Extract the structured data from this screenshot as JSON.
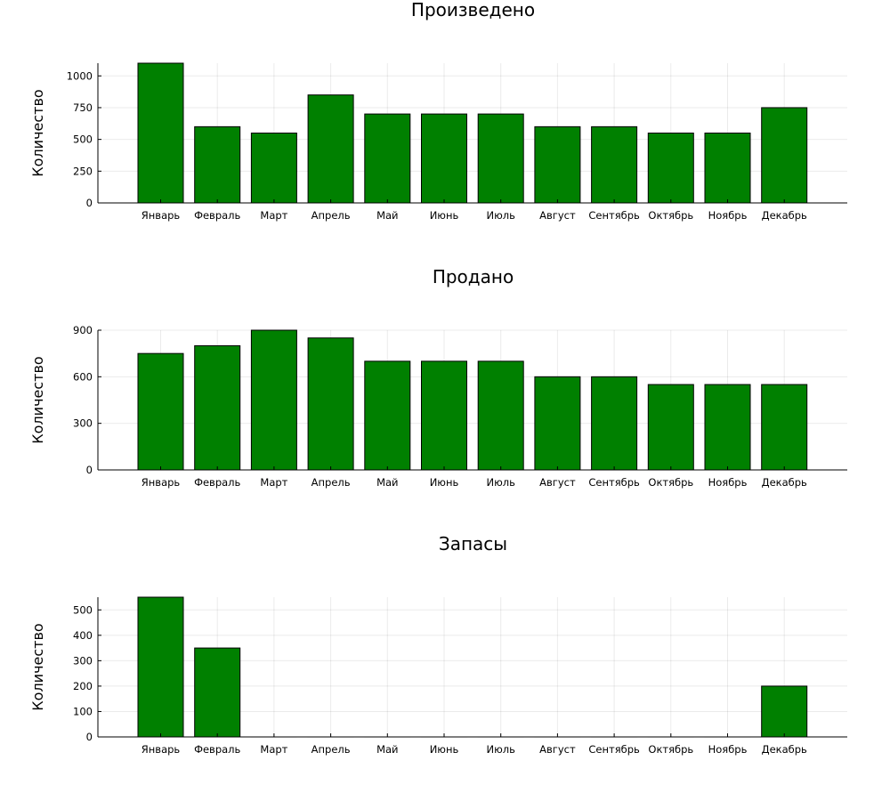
{
  "chart_data": [
    {
      "type": "bar",
      "title": "Произведено",
      "ylabel": "Количество",
      "xlabel": "",
      "categories": [
        "Январь",
        "Февраль",
        "Март",
        "Апрель",
        "Май",
        "Июнь",
        "Июль",
        "Август",
        "Сентябрь",
        "Октябрь",
        "Ноябрь",
        "Декабрь"
      ],
      "values": [
        1100,
        600,
        550,
        850,
        700,
        700,
        700,
        600,
        600,
        550,
        550,
        750
      ],
      "ylim": [
        0,
        1100
      ],
      "yticks": [
        0,
        250,
        500,
        750,
        1000
      ],
      "grid": true,
      "legend": "none",
      "bar_color": "#008000"
    },
    {
      "type": "bar",
      "title": "Продано",
      "ylabel": "Количество",
      "xlabel": "",
      "categories": [
        "Январь",
        "Февраль",
        "Март",
        "Апрель",
        "Май",
        "Июнь",
        "Июль",
        "Август",
        "Сентябрь",
        "Октябрь",
        "Ноябрь",
        "Декабрь"
      ],
      "values": [
        750,
        800,
        900,
        850,
        700,
        700,
        700,
        600,
        600,
        550,
        550,
        550
      ],
      "ylim": [
        0,
        900
      ],
      "yticks": [
        0,
        300,
        600,
        900
      ],
      "grid": true,
      "legend": "none",
      "bar_color": "#008000"
    },
    {
      "type": "bar",
      "title": "Запасы",
      "ylabel": "Количество",
      "xlabel": "",
      "categories": [
        "Январь",
        "Февраль",
        "Март",
        "Апрель",
        "Май",
        "Июнь",
        "Июль",
        "Август",
        "Сентябрь",
        "Октябрь",
        "Ноябрь",
        "Декабрь"
      ],
      "values": [
        550,
        350,
        0,
        0,
        0,
        0,
        0,
        0,
        0,
        0,
        0,
        200
      ],
      "ylim": [
        0,
        550
      ],
      "yticks": [
        0,
        100,
        200,
        300,
        400,
        500
      ],
      "grid": true,
      "legend": "none",
      "bar_color": "#008000"
    }
  ]
}
